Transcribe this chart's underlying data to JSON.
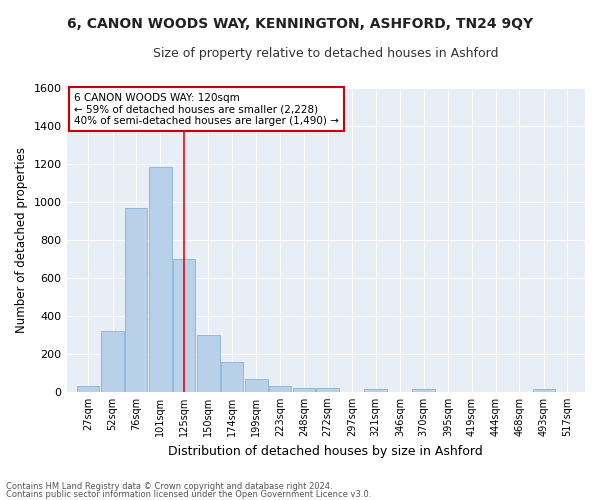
{
  "title": "6, CANON WOODS WAY, KENNINGTON, ASHFORD, TN24 9QY",
  "subtitle": "Size of property relative to detached houses in Ashford",
  "xlabel": "Distribution of detached houses by size in Ashford",
  "ylabel": "Number of detached properties",
  "categories": [
    "27sqm",
    "52sqm",
    "76sqm",
    "101sqm",
    "125sqm",
    "150sqm",
    "174sqm",
    "199sqm",
    "223sqm",
    "248sqm",
    "272sqm",
    "297sqm",
    "321sqm",
    "346sqm",
    "370sqm",
    "395sqm",
    "419sqm",
    "444sqm",
    "468sqm",
    "493sqm",
    "517sqm"
  ],
  "values": [
    30,
    320,
    970,
    1185,
    700,
    300,
    155,
    65,
    30,
    20,
    20,
    0,
    15,
    0,
    15,
    0,
    0,
    0,
    0,
    15,
    0
  ],
  "bar_color": "#b8d0e8",
  "bar_edgecolor": "#8ab4d4",
  "property_line_label": "6 CANON WOODS WAY: 120sqm",
  "annotation_line1": "← 59% of detached houses are smaller (2,228)",
  "annotation_line2": "40% of semi-detached houses are larger (1,490) →",
  "annotation_box_facecolor": "#ffffff",
  "annotation_box_edgecolor": "#cc0000",
  "ylim": [
    0,
    1600
  ],
  "yticks": [
    0,
    200,
    400,
    600,
    800,
    1000,
    1200,
    1400,
    1600
  ],
  "plot_bg_color": "#e8eef5",
  "fig_bg_color": "#ffffff",
  "grid_color": "#ffffff",
  "footer_line1": "Contains HM Land Registry data © Crown copyright and database right 2024.",
  "footer_line2": "Contains public sector information licensed under the Open Government Licence v3.0.",
  "x_centers": [
    27,
    52,
    76,
    101,
    125,
    150,
    174,
    199,
    223,
    248,
    272,
    297,
    321,
    346,
    370,
    395,
    419,
    444,
    468,
    493,
    517
  ],
  "bin_width": 23
}
